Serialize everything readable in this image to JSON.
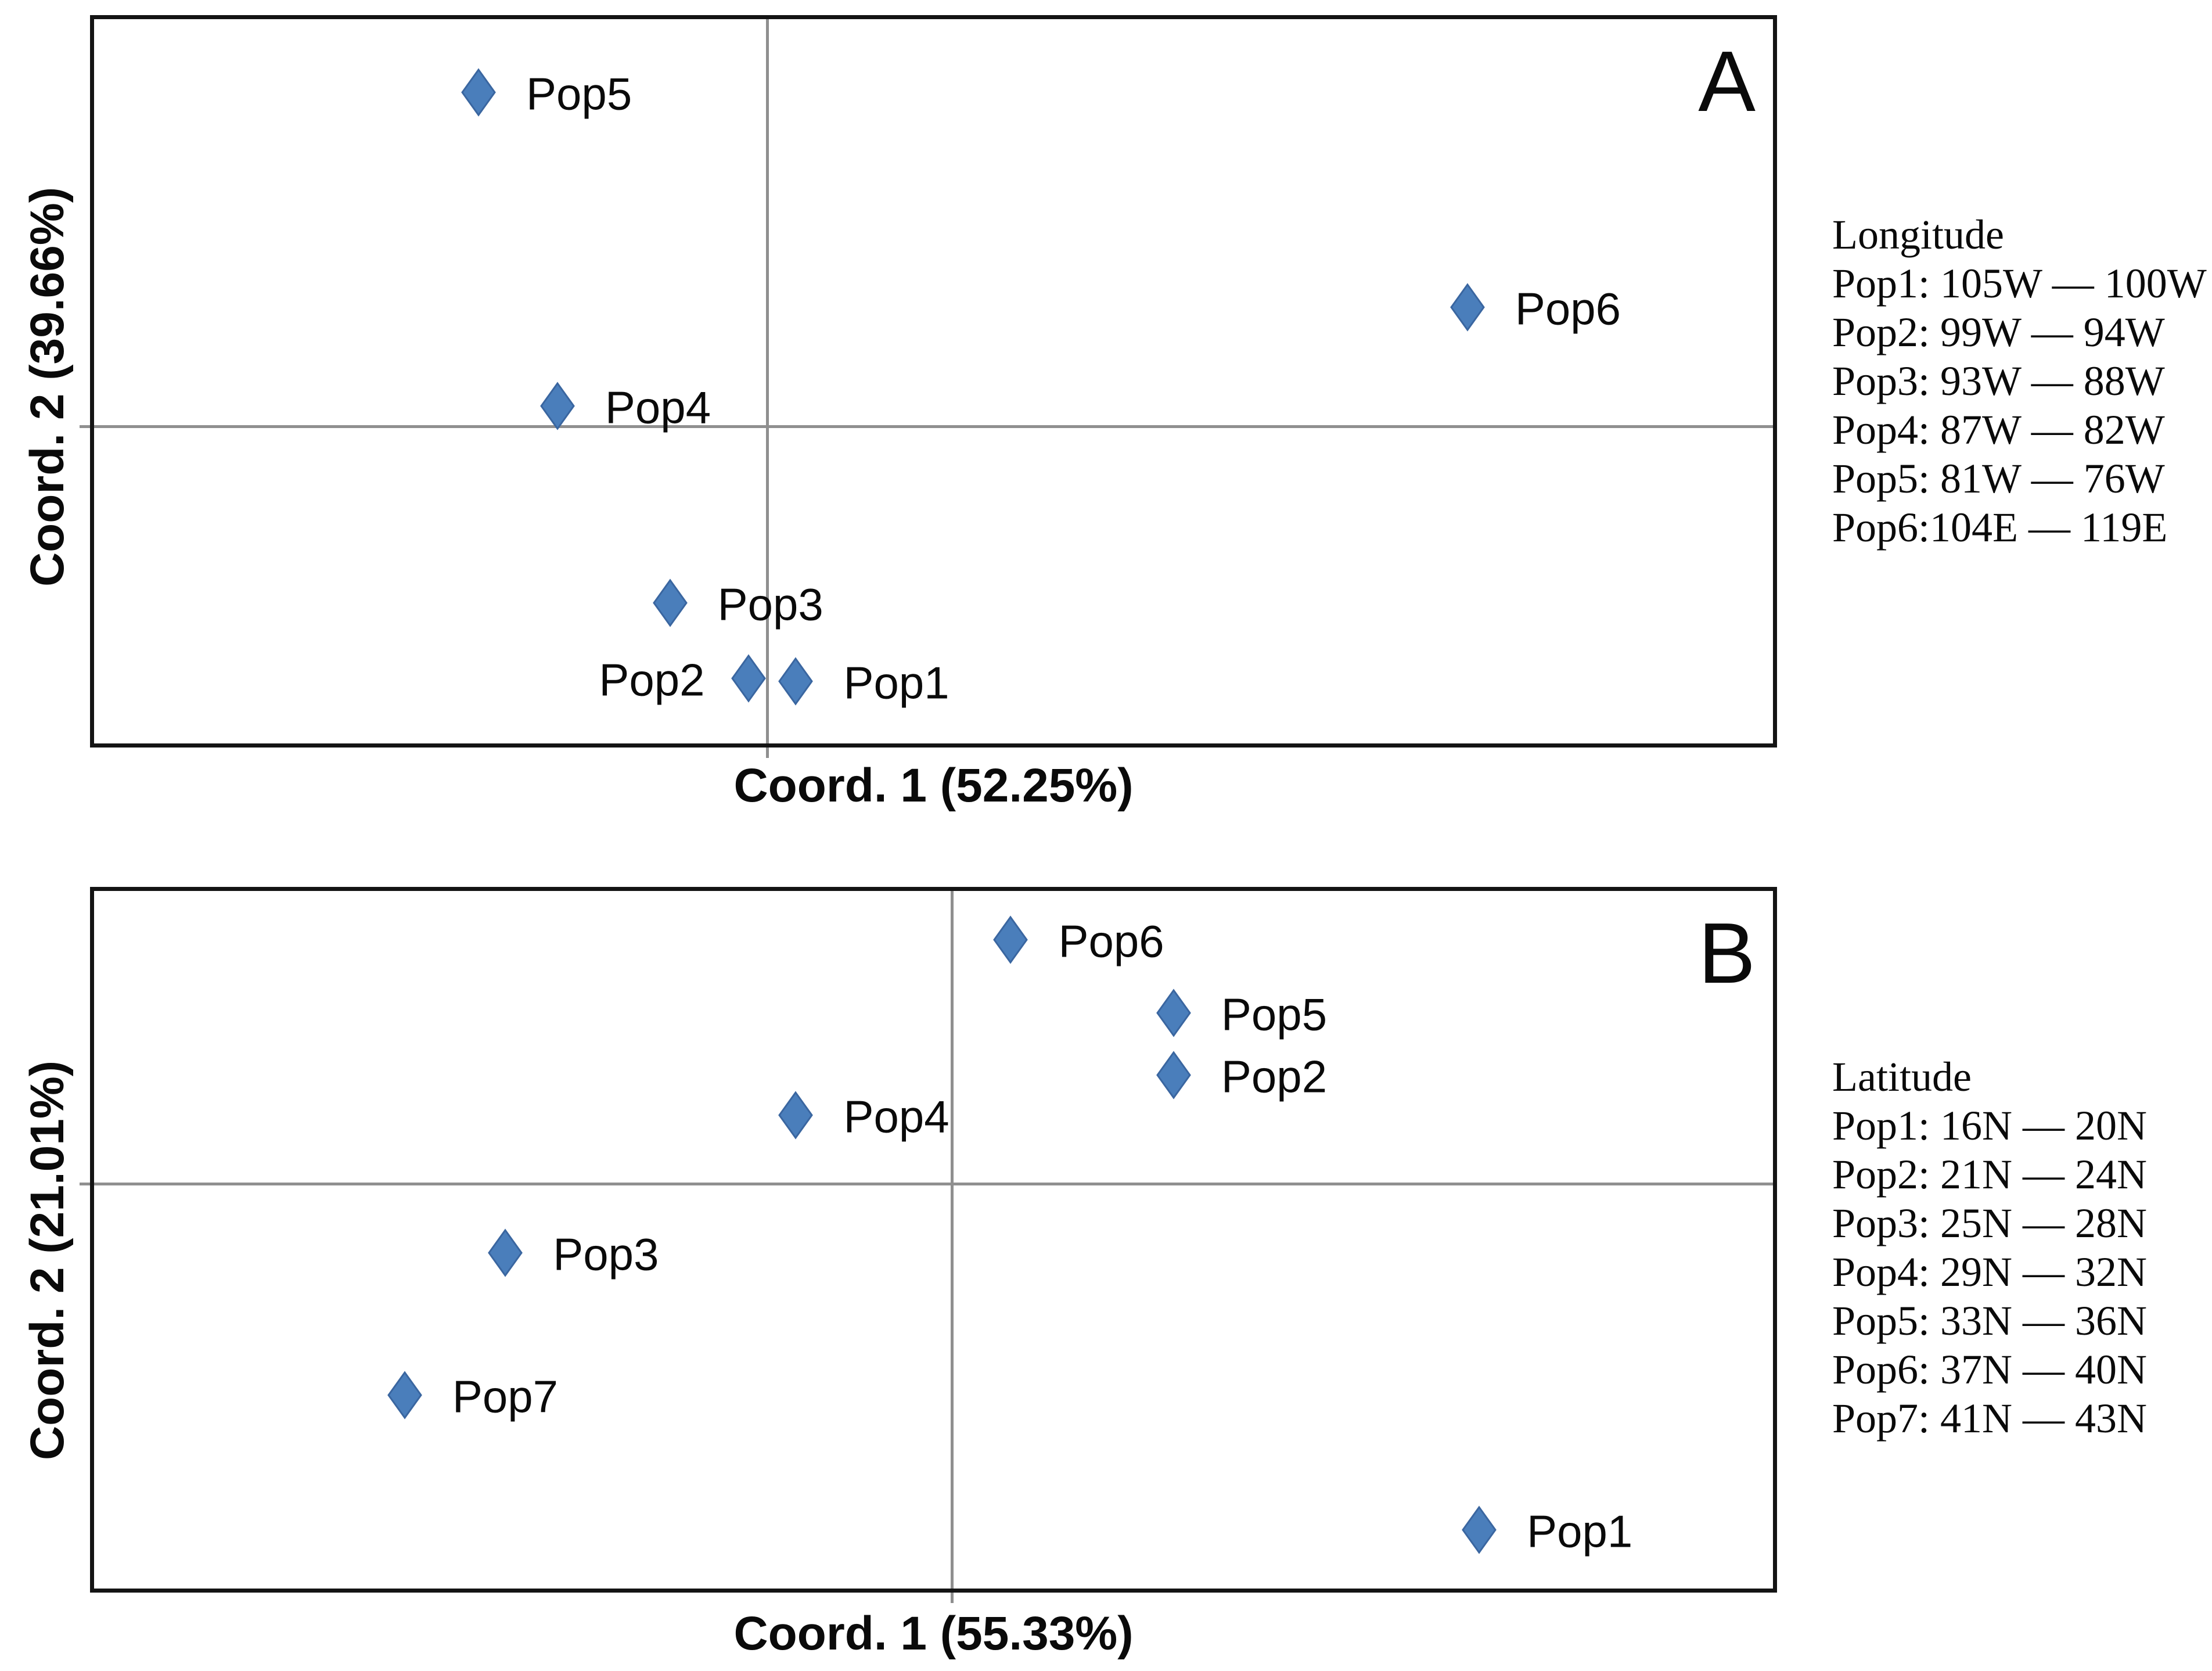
{
  "styles": {
    "marker_fill": "#4a7ebb",
    "marker_stroke": "#3a66a0",
    "gridline_color": "#8f8f8f",
    "border_color": "#141414",
    "text_color": "#0a0a0a",
    "background": "#ffffff"
  },
  "chart_data": [
    {
      "type": "scatter",
      "panel_label": "A",
      "xlabel": "Coord. 1 (52.25%)",
      "ylabel": "Coord. 2 (39.66%)",
      "grid": "crosshair-only",
      "axis_ticks_visible": false,
      "marker_shape": "diamond",
      "axes_origin_frac": {
        "x": 0.401,
        "y": 0.562
      },
      "points": [
        {
          "name": "Pop1",
          "fx": 0.418,
          "fy": 0.914,
          "side": "right"
        },
        {
          "name": "Pop2",
          "fx": 0.39,
          "fy": 0.91,
          "side": "left"
        },
        {
          "name": "Pop3",
          "fx": 0.343,
          "fy": 0.806,
          "side": "right"
        },
        {
          "name": "Pop4",
          "fx": 0.276,
          "fy": 0.534,
          "side": "right"
        },
        {
          "name": "Pop5",
          "fx": 0.229,
          "fy": 0.101,
          "side": "right"
        },
        {
          "name": "Pop6",
          "fx": 0.818,
          "fy": 0.398,
          "side": "right"
        }
      ],
      "legend": {
        "title": "Longitude",
        "entries": [
          "Pop1: 105W — 100W",
          "Pop2: 99W — 94W",
          "Pop3: 93W — 88W",
          "Pop4: 87W — 82W",
          "Pop5: 81W — 76W",
          "Pop6:104E — 119E"
        ],
        "position": "right-of-plot"
      }
    },
    {
      "type": "scatter",
      "panel_label": "B",
      "xlabel": "Coord. 1 (55.33%)",
      "ylabel": "Coord. 2 (21.01%)",
      "grid": "crosshair-only",
      "axis_ticks_visible": false,
      "marker_shape": "diamond",
      "axes_origin_frac": {
        "x": 0.511,
        "y": 0.42
      },
      "points": [
        {
          "name": "Pop1",
          "fx": 0.825,
          "fy": 0.916,
          "side": "right"
        },
        {
          "name": "Pop2",
          "fx": 0.643,
          "fy": 0.264,
          "side": "right"
        },
        {
          "name": "Pop3",
          "fx": 0.245,
          "fy": 0.519,
          "side": "right"
        },
        {
          "name": "Pop4",
          "fx": 0.418,
          "fy": 0.321,
          "side": "right"
        },
        {
          "name": "Pop5",
          "fx": 0.643,
          "fy": 0.175,
          "side": "right"
        },
        {
          "name": "Pop6",
          "fx": 0.546,
          "fy": 0.07,
          "side": "right"
        },
        {
          "name": "Pop7",
          "fx": 0.185,
          "fy": 0.723,
          "side": "right"
        }
      ],
      "legend": {
        "title": "Latitude",
        "entries": [
          "Pop1: 16N — 20N",
          "Pop2: 21N — 24N",
          "Pop3: 25N — 28N",
          "Pop4: 29N — 32N",
          "Pop5: 33N — 36N",
          "Pop6: 37N — 40N",
          "Pop7: 41N — 43N"
        ],
        "position": "right-of-plot"
      }
    }
  ]
}
